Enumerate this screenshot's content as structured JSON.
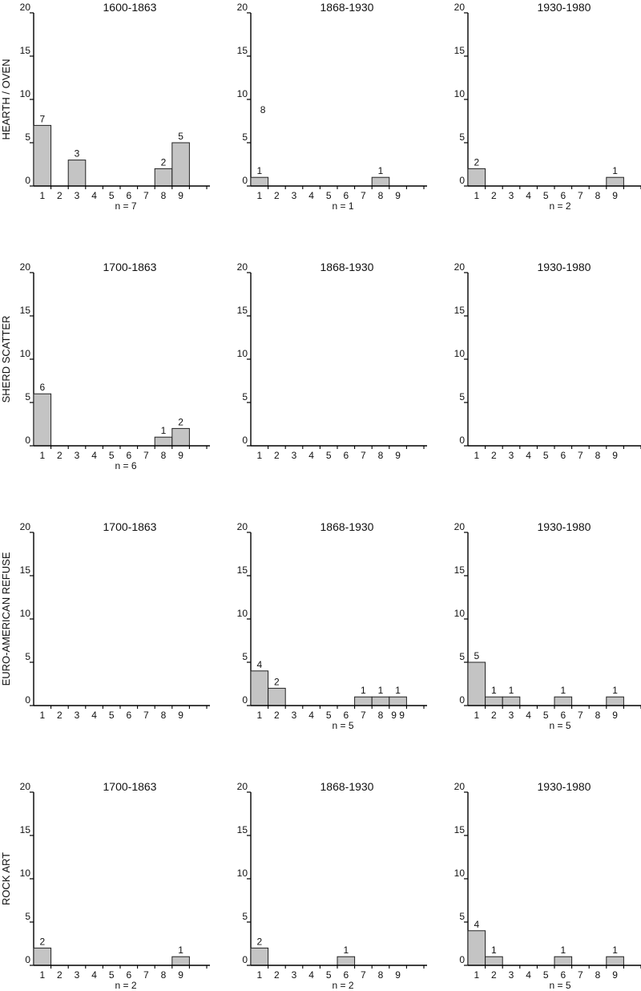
{
  "colors": {
    "bar_fill": "#c4c4c4",
    "bar_stroke": "#222222",
    "axis": "#000000"
  },
  "chart_data": [
    {
      "type": "bar",
      "row_label": "HEARTH / OVEN",
      "title": "1600-1863",
      "categories": [
        "1",
        "2",
        "3",
        "4",
        "5",
        "6",
        "7",
        "8",
        "9"
      ],
      "values": [
        7,
        0,
        3,
        0,
        0,
        0,
        0,
        2,
        5
      ],
      "data_labels": [
        "7",
        "",
        "3",
        "",
        "",
        "",
        "",
        "2",
        "5"
      ],
      "note": "n = 7",
      "yticks": [
        "0",
        "5",
        "10",
        "15",
        "20"
      ],
      "ylim": [
        0,
        20
      ]
    },
    {
      "type": "bar",
      "row_label": "",
      "title": "1868-1930",
      "categories": [
        "1",
        "2",
        "3",
        "4",
        "5",
        "6",
        "7",
        "8",
        "9"
      ],
      "values": [
        1,
        0,
        0,
        0,
        0,
        0,
        0,
        1,
        0
      ],
      "data_labels": [
        "1",
        "",
        "",
        "",
        "",
        "",
        "",
        "1",
        ""
      ],
      "extra_label": "8",
      "note": "n = 1",
      "yticks": [
        "0",
        "5",
        "10",
        "15",
        "20"
      ],
      "ylim": [
        0,
        20
      ]
    },
    {
      "type": "bar",
      "row_label": "",
      "title": "1930-1980",
      "categories": [
        "1",
        "2",
        "3",
        "4",
        "5",
        "6",
        "7",
        "8",
        "9"
      ],
      "values": [
        2,
        0,
        0,
        0,
        0,
        0,
        0,
        0,
        1
      ],
      "data_labels": [
        "2",
        "",
        "",
        "",
        "",
        "",
        "",
        "",
        "1"
      ],
      "note": "n = 2",
      "yticks": [
        "0",
        "5",
        "10",
        "15",
        "20"
      ],
      "ylim": [
        0,
        20
      ]
    },
    {
      "type": "bar",
      "row_label": "SHERD SCATTER",
      "title": "1700-1863",
      "categories": [
        "1",
        "2",
        "3",
        "4",
        "5",
        "6",
        "7",
        "8",
        "9"
      ],
      "values": [
        6,
        0,
        0,
        0,
        0,
        0,
        0,
        1,
        2
      ],
      "data_labels": [
        "6",
        "",
        "",
        "",
        "",
        "",
        "",
        "1",
        "2"
      ],
      "note": "n = 6",
      "yticks": [
        "0",
        "5",
        "10",
        "15",
        "20"
      ],
      "ylim": [
        0,
        20
      ]
    },
    {
      "type": "bar",
      "row_label": "",
      "title": "1868-1930",
      "categories": [
        "1",
        "2",
        "3",
        "4",
        "5",
        "6",
        "7",
        "8",
        "9"
      ],
      "values": [
        0,
        0,
        0,
        0,
        0,
        0,
        0,
        0,
        0
      ],
      "data_labels": [
        "",
        "",
        "",
        "",
        "",
        "",
        "",
        "",
        ""
      ],
      "note": "",
      "yticks": [
        "0",
        "5",
        "10",
        "15",
        "20"
      ],
      "ylim": [
        0,
        20
      ]
    },
    {
      "type": "bar",
      "row_label": "",
      "title": "1930-1980",
      "categories": [
        "1",
        "2",
        "3",
        "4",
        "5",
        "6",
        "7",
        "8",
        "9"
      ],
      "values": [
        0,
        0,
        0,
        0,
        0,
        0,
        0,
        0,
        0
      ],
      "data_labels": [
        "",
        "",
        "",
        "",
        "",
        "",
        "",
        "",
        ""
      ],
      "note": "",
      "yticks": [
        "0",
        "5",
        "10",
        "15",
        "20"
      ],
      "ylim": [
        0,
        20
      ]
    },
    {
      "type": "bar",
      "row_label": "EURO-AMERICAN REFUSE",
      "title": "1700-1863",
      "categories": [
        "1",
        "2",
        "3",
        "4",
        "5",
        "6",
        "7",
        "8",
        "9"
      ],
      "values": [
        0,
        0,
        0,
        0,
        0,
        0,
        0,
        0,
        0
      ],
      "data_labels": [
        "",
        "",
        "",
        "",
        "",
        "",
        "",
        "",
        ""
      ],
      "note": "",
      "yticks": [
        "0",
        "5",
        "10",
        "15",
        "20"
      ],
      "ylim": [
        0,
        20
      ]
    },
    {
      "type": "bar",
      "row_label": "",
      "title": "1868-1930",
      "categories": [
        "1",
        "2",
        "3",
        "4",
        "5",
        "6",
        "7",
        "8",
        "9"
      ],
      "category_labels": [
        "1",
        "2",
        "3",
        "4",
        "5",
        "6",
        "7",
        "8",
        "9 9"
      ],
      "values": [
        4,
        2,
        0,
        0,
        0,
        0,
        1,
        1,
        1
      ],
      "data_labels": [
        "4",
        "2",
        "",
        "",
        "",
        "",
        "1",
        "1",
        "1"
      ],
      "note": "n = 5",
      "yticks": [
        "0",
        "5",
        "10",
        "15",
        "20"
      ],
      "ylim": [
        0,
        20
      ]
    },
    {
      "type": "bar",
      "row_label": "",
      "title": "1930-1980",
      "categories": [
        "1",
        "2",
        "3",
        "4",
        "5",
        "6",
        "7",
        "8",
        "9"
      ],
      "values": [
        5,
        1,
        1,
        0,
        0,
        1,
        0,
        0,
        1
      ],
      "data_labels": [
        "5",
        "1",
        "1",
        "",
        "",
        "1",
        "",
        "",
        "1"
      ],
      "note": "n = 5",
      "yticks": [
        "0",
        "5",
        "10",
        "15",
        "20"
      ],
      "ylim": [
        0,
        20
      ]
    },
    {
      "type": "bar",
      "row_label": "ROCK ART",
      "title": "1700-1863",
      "categories": [
        "1",
        "2",
        "3",
        "4",
        "5",
        "6",
        "7",
        "8",
        "9"
      ],
      "values": [
        2,
        0,
        0,
        0,
        0,
        0,
        0,
        0,
        1
      ],
      "data_labels": [
        "2",
        "",
        "",
        "",
        "",
        "",
        "",
        "",
        "1"
      ],
      "note": "n = 2",
      "yticks": [
        "0",
        "5",
        "10",
        "15",
        "20"
      ],
      "ylim": [
        0,
        20
      ]
    },
    {
      "type": "bar",
      "row_label": "",
      "title": "1868-1930",
      "categories": [
        "1",
        "2",
        "3",
        "4",
        "5",
        "6",
        "7",
        "8",
        "9"
      ],
      "values": [
        2,
        0,
        0,
        0,
        0,
        1,
        0,
        0,
        0
      ],
      "data_labels": [
        "2",
        "",
        "",
        "",
        "",
        "1",
        "",
        "",
        ""
      ],
      "note": "n = 2",
      "yticks": [
        "0",
        "5",
        "10",
        "15",
        "20"
      ],
      "ylim": [
        0,
        20
      ]
    },
    {
      "type": "bar",
      "row_label": "",
      "title": "1930-1980",
      "categories": [
        "1",
        "2",
        "3",
        "4",
        "5",
        "6",
        "7",
        "8",
        "9"
      ],
      "values": [
        4,
        1,
        0,
        0,
        0,
        1,
        0,
        0,
        1
      ],
      "data_labels": [
        "4",
        "1",
        "",
        "",
        "",
        "1",
        "",
        "",
        "1"
      ],
      "note": "n = 5",
      "yticks": [
        "0",
        "5",
        "10",
        "15",
        "20"
      ],
      "ylim": [
        0,
        20
      ]
    }
  ]
}
